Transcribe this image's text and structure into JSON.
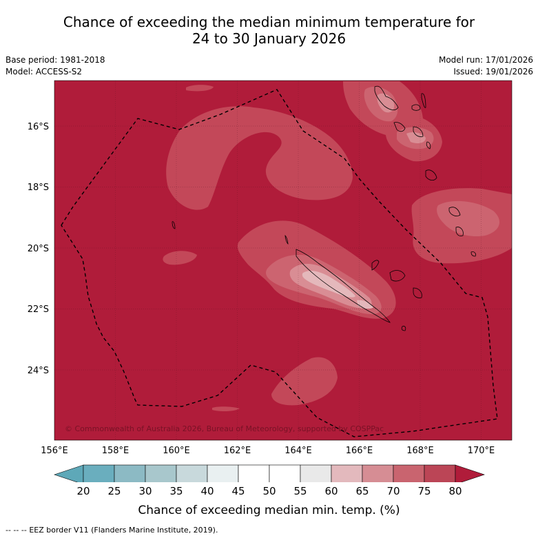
{
  "title": {
    "line1": "Chance of exceeding the median minimum temperature for",
    "line2": "24 to 30 January 2026"
  },
  "meta": {
    "base_period": "Base period: 1981-2018",
    "model": "Model: ACCESS-S2",
    "model_run": "Model run: 17/01/2026",
    "issued": "Issued: 19/01/2026"
  },
  "map": {
    "latitude_labels": [
      "16°S",
      "18°S",
      "20°S",
      "22°S",
      "24°S"
    ],
    "longitude_labels": [
      "156°E",
      "158°E",
      "160°E",
      "162°E",
      "164°E",
      "166°E",
      "168°E",
      "170°E"
    ],
    "copyright": "© Commonwealth of Australia 2026, Bureau of Meteorology, supported by COSPPac",
    "colors": {
      "c80": "#b01c3a",
      "c75": "#c34859",
      "c70": "#cc6470",
      "c65": "#d98d94",
      "c60": "#e4b8bb",
      "border": "#000000"
    }
  },
  "colorbar": {
    "ticks": [
      "20",
      "25",
      "30",
      "35",
      "40",
      "45",
      "50",
      "55",
      "60",
      "65",
      "70",
      "75",
      "80"
    ],
    "colors": [
      "#6aaebe",
      "#8cbac4",
      "#a8c7cc",
      "#c8d9dc",
      "#e9f0f1",
      "#ffffff",
      "#ffffff",
      "#e9e9e9",
      "#e3b9bd",
      "#d68d94",
      "#c9646f",
      "#bb4556"
    ],
    "low_color": "#5ea8b8",
    "high_color": "#b01c3a",
    "label": "Chance of exceeding median min. temp. (%)"
  },
  "footer": {
    "legend_symbol": "-- -- --",
    "legend_text": "EEZ border V11 (Flanders Marine Institute, 2019)."
  }
}
